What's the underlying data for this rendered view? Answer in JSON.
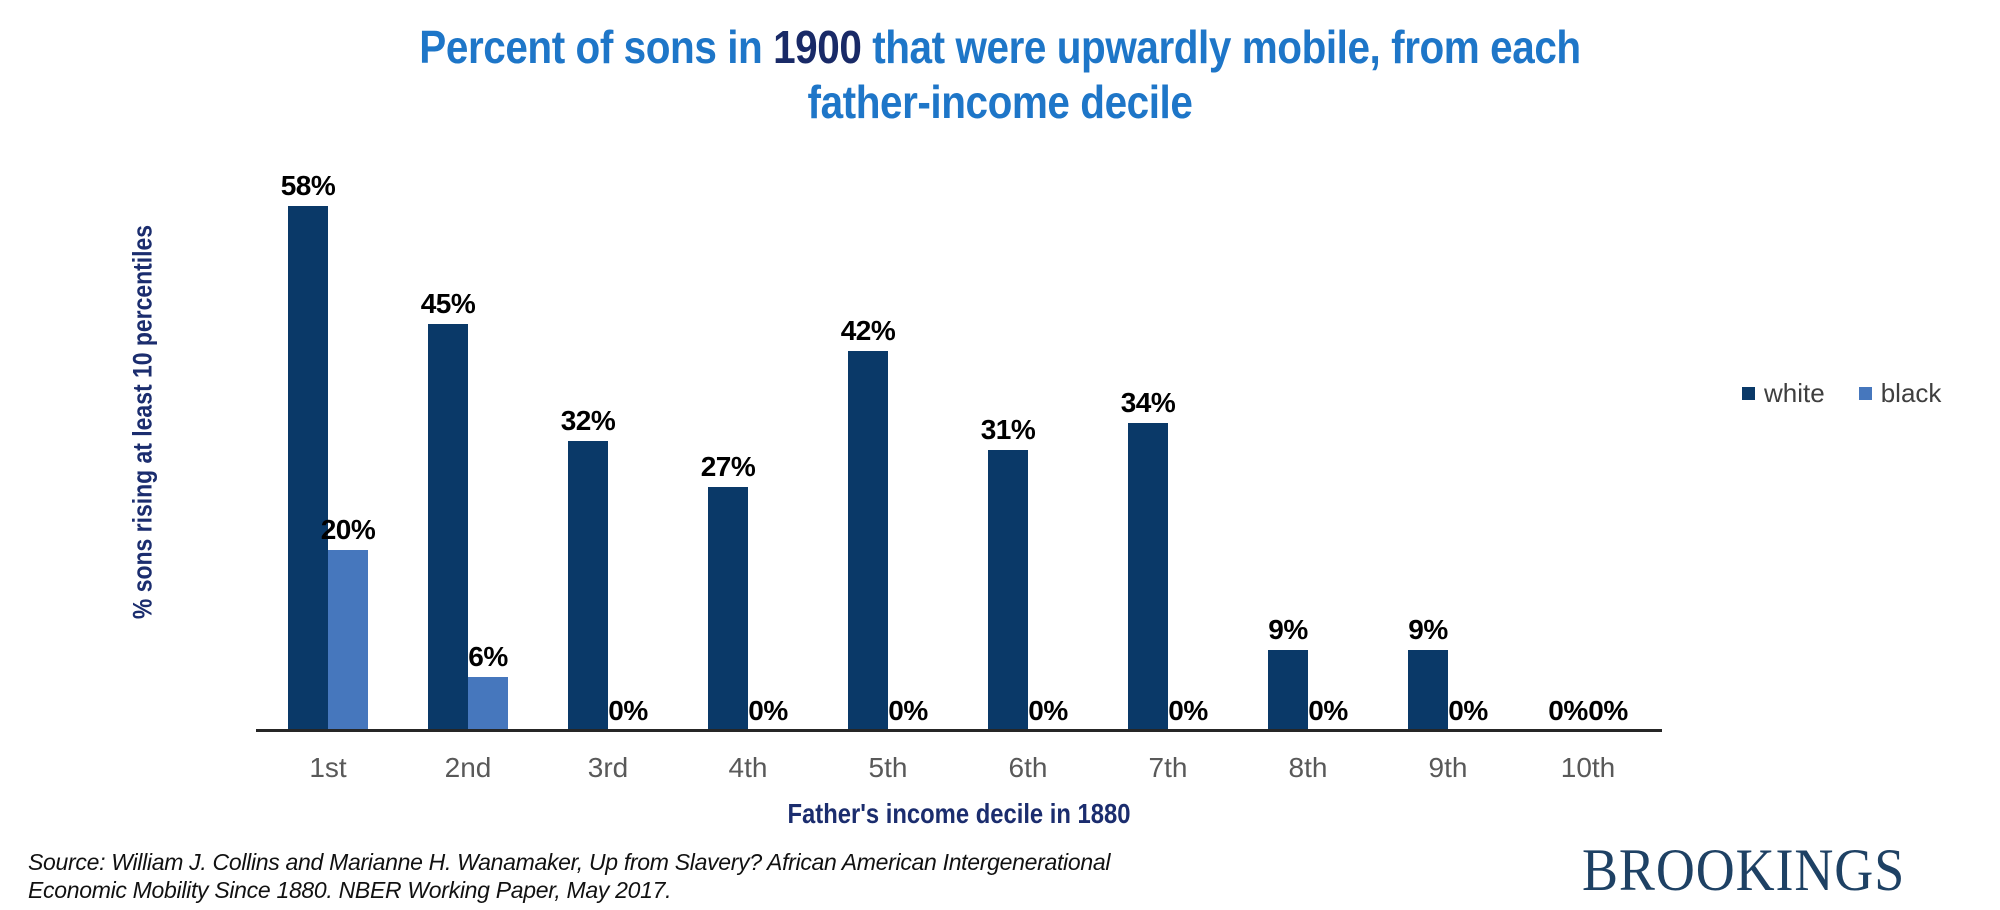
{
  "title": {
    "line1_pre": "Percent of sons in ",
    "line1_year": "1900",
    "line1_post": " that were upwardly mobile, from each",
    "line2": "father-income decile"
  },
  "legend": {
    "items": [
      {
        "label": "white",
        "color": "#0A3968"
      },
      {
        "label": "black",
        "color": "#4677BD"
      }
    ]
  },
  "source": {
    "line1": "Source: William J. Collins and Marianne H. Wanamaker, Up from Slavery? African American Intergenerational",
    "line2": "Economic Mobility Since 1880. NBER Working Paper, May 2017."
  },
  "branding": {
    "logo_text": "BROOKINGS"
  },
  "colors": {
    "title_blue": "#1E76C8",
    "title_year_navy": "#192A67",
    "axis_title_navy": "#1B2D6E",
    "tick_gray": "#595959",
    "legend_text": "#3F3F3F",
    "axis_line": "#262626",
    "source_text": "#111111",
    "brookings_navy": "#1E4164"
  },
  "chart_data": {
    "type": "bar",
    "title": "Percent of sons in 1900 that were upwardly mobile, from each father-income decile",
    "xlabel": "Father's income decile in 1880",
    "ylabel": "% sons rising at least 10 percentiles",
    "categories": [
      "1st",
      "2nd",
      "3rd",
      "4th",
      "5th",
      "6th",
      "7th",
      "8th",
      "9th",
      "10th"
    ],
    "series": [
      {
        "name": "white",
        "color": "#0A3968",
        "values": [
          58,
          45,
          32,
          27,
          42,
          31,
          34,
          9,
          9,
          0
        ]
      },
      {
        "name": "black",
        "color": "#4677BD",
        "values": [
          20,
          6,
          0,
          0,
          0,
          0,
          0,
          0,
          0,
          0
        ]
      }
    ],
    "data_labels": "outside-end, percent",
    "ylim": [
      0,
      60
    ],
    "grid": false,
    "y_axis_visible": false,
    "legend_position": "right"
  }
}
